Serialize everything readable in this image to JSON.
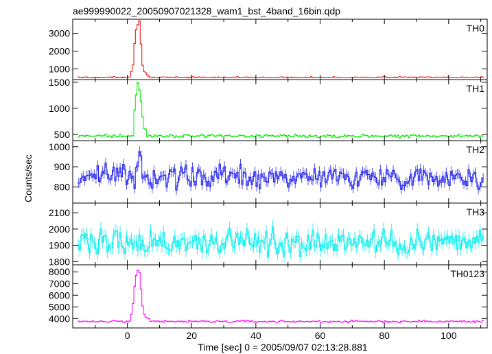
{
  "title": "ae999990022_20050907021328_wam1_bst_4band_16bin.qdp",
  "chart_data": {
    "type": "line",
    "title": "ae999990022_20050907021328_wam1_bst_4band_16bin.qdp",
    "xlabel": "Time [sec] 0 = 2005/09/07 02:13:28.881",
    "ylabel": "Counts/sec",
    "xlim": [
      -17,
      112
    ],
    "xticks": [
      0,
      20,
      40,
      60,
      80,
      100
    ],
    "xtick_labels": [
      "0",
      "20",
      "40",
      "60",
      "80",
      "100"
    ],
    "grid": false,
    "panels": [
      {
        "name": "TH0",
        "color": "#ff0000",
        "ylim": [
          400,
          3800
        ],
        "yticks": [
          1000,
          2000,
          3000
        ],
        "ytick_labels": [
          "1000",
          "2000",
          "3000"
        ],
        "baseline": 530,
        "noise": 30,
        "burst": [
          [
            0.5,
            620
          ],
          [
            1.0,
            800
          ],
          [
            1.5,
            1250
          ],
          [
            2.0,
            2300
          ],
          [
            2.5,
            3350
          ],
          [
            3.0,
            3600
          ],
          [
            3.5,
            3550
          ],
          [
            4.0,
            2400
          ],
          [
            4.5,
            1200
          ],
          [
            5.0,
            850
          ],
          [
            6.0,
            650
          ],
          [
            7.0,
            580
          ]
        ]
      },
      {
        "name": "TH1",
        "color": "#00ee00",
        "ylim": [
          380,
          1550
        ],
        "yticks": [
          500,
          1000,
          1500
        ],
        "ytick_labels": [
          "500",
          "1000",
          "1500"
        ],
        "baseline": 470,
        "noise": 25,
        "burst": [
          [
            1.5,
            560
          ],
          [
            2.0,
            950
          ],
          [
            2.5,
            1300
          ],
          [
            3.0,
            1480
          ],
          [
            3.5,
            1420
          ],
          [
            4.0,
            1150
          ],
          [
            4.5,
            800
          ],
          [
            5.0,
            620
          ],
          [
            6.0,
            540
          ]
        ]
      },
      {
        "name": "TH2",
        "color": "#2020ee",
        "ylim": [
          720,
          1030
        ],
        "yticks": [
          800,
          900,
          1000
        ],
        "ytick_labels": [
          "800",
          "900",
          "1000"
        ],
        "baseline": 850,
        "noise": 45,
        "burst": [
          [
            2.5,
            920
          ],
          [
            3.5,
            1000
          ],
          [
            4.5,
            930
          ]
        ]
      },
      {
        "name": "TH3",
        "color": "#00eeee",
        "ylim": [
          1780,
          2160
        ],
        "yticks": [
          1800,
          1900,
          2000,
          2100
        ],
        "ytick_labels": [
          "1800",
          "1900",
          "2000",
          "2100"
        ],
        "baseline": 1920,
        "noise": 70,
        "burst": []
      },
      {
        "name": "TH0123",
        "color": "#ff00ff",
        "ylim": [
          3200,
          8600
        ],
        "yticks": [
          4000,
          5000,
          6000,
          7000,
          8000
        ],
        "ytick_labels": [
          "4000",
          "5000",
          "6000",
          "7000",
          "8000"
        ],
        "baseline": 3750,
        "noise": 80,
        "burst": [
          [
            0.5,
            3950
          ],
          [
            1.0,
            4400
          ],
          [
            1.5,
            5300
          ],
          [
            2.0,
            6600
          ],
          [
            2.5,
            7600
          ],
          [
            3.0,
            8050
          ],
          [
            3.5,
            7800
          ],
          [
            4.0,
            6400
          ],
          [
            4.5,
            5000
          ],
          [
            5.0,
            4300
          ],
          [
            6.0,
            4000
          ],
          [
            7.0,
            3850
          ]
        ]
      }
    ]
  }
}
